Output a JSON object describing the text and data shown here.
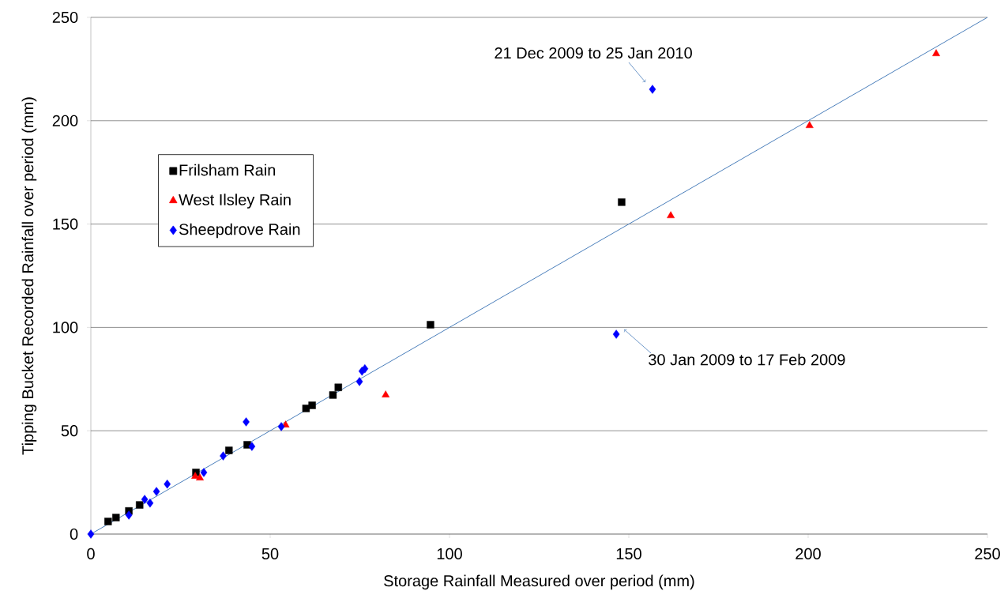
{
  "chart_data": {
    "type": "scatter",
    "xlabel": "Storage Rainfall Measured over period (mm)",
    "ylabel": "Tipping Bucket Recorded Rainfall over period (mm)",
    "xlim": [
      0,
      250
    ],
    "ylim": [
      0,
      250
    ],
    "xticks": [
      0,
      50,
      100,
      150,
      200,
      250
    ],
    "yticks": [
      0,
      50,
      100,
      150,
      200,
      250
    ],
    "grid": "y",
    "legend": "top left",
    "series": [
      {
        "name": "Frilsham Rain",
        "color": "#000000",
        "marker": "square",
        "x": [
          4.8,
          7,
          10.6,
          13.6,
          29.3,
          38.5,
          43.6,
          60,
          61.7,
          67.5,
          69,
          94.7,
          148
        ],
        "values": [
          6.1,
          8,
          11.2,
          14.1,
          29.8,
          40.5,
          43.2,
          60.8,
          62.3,
          67.3,
          71,
          101.3,
          160.6
        ]
      },
      {
        "name": "West Ilsley Rain",
        "color": "#ff0000",
        "marker": "triangle",
        "x": [
          29.1,
          30.4,
          54.3,
          82.2,
          161.7,
          200.4,
          235.7
        ],
        "values": [
          27.9,
          27.1,
          52.7,
          67.3,
          154,
          197.6,
          232.4
        ]
      },
      {
        "name": "Sheepdrove Rain",
        "color": "#0000ff",
        "marker": "diamond",
        "x": [
          0,
          10.6,
          15,
          16.5,
          18.3,
          21.3,
          31.5,
          36.9,
          43.3,
          44.9,
          53.1,
          74.9,
          75.6,
          76.4,
          146.5,
          156.6
        ],
        "values": [
          0,
          9.2,
          16.8,
          15,
          20.6,
          24.2,
          29.8,
          37.8,
          54.3,
          42.4,
          52,
          73.8,
          78.8,
          80,
          96.7,
          215.2
        ]
      },
      {
        "type": "line",
        "color": "#4a7ebb",
        "marker": "none",
        "x": [
          0,
          250
        ],
        "values": [
          0,
          250
        ]
      }
    ],
    "annotations": [
      {
        "text": "21 Dec 2009 to 25 Jan 2010",
        "x": 156.6,
        "y": 215.2
      },
      {
        "text": "30 Jan 2009 to 17 Feb 2009",
        "x": 146.5,
        "y": 96.7
      }
    ]
  }
}
